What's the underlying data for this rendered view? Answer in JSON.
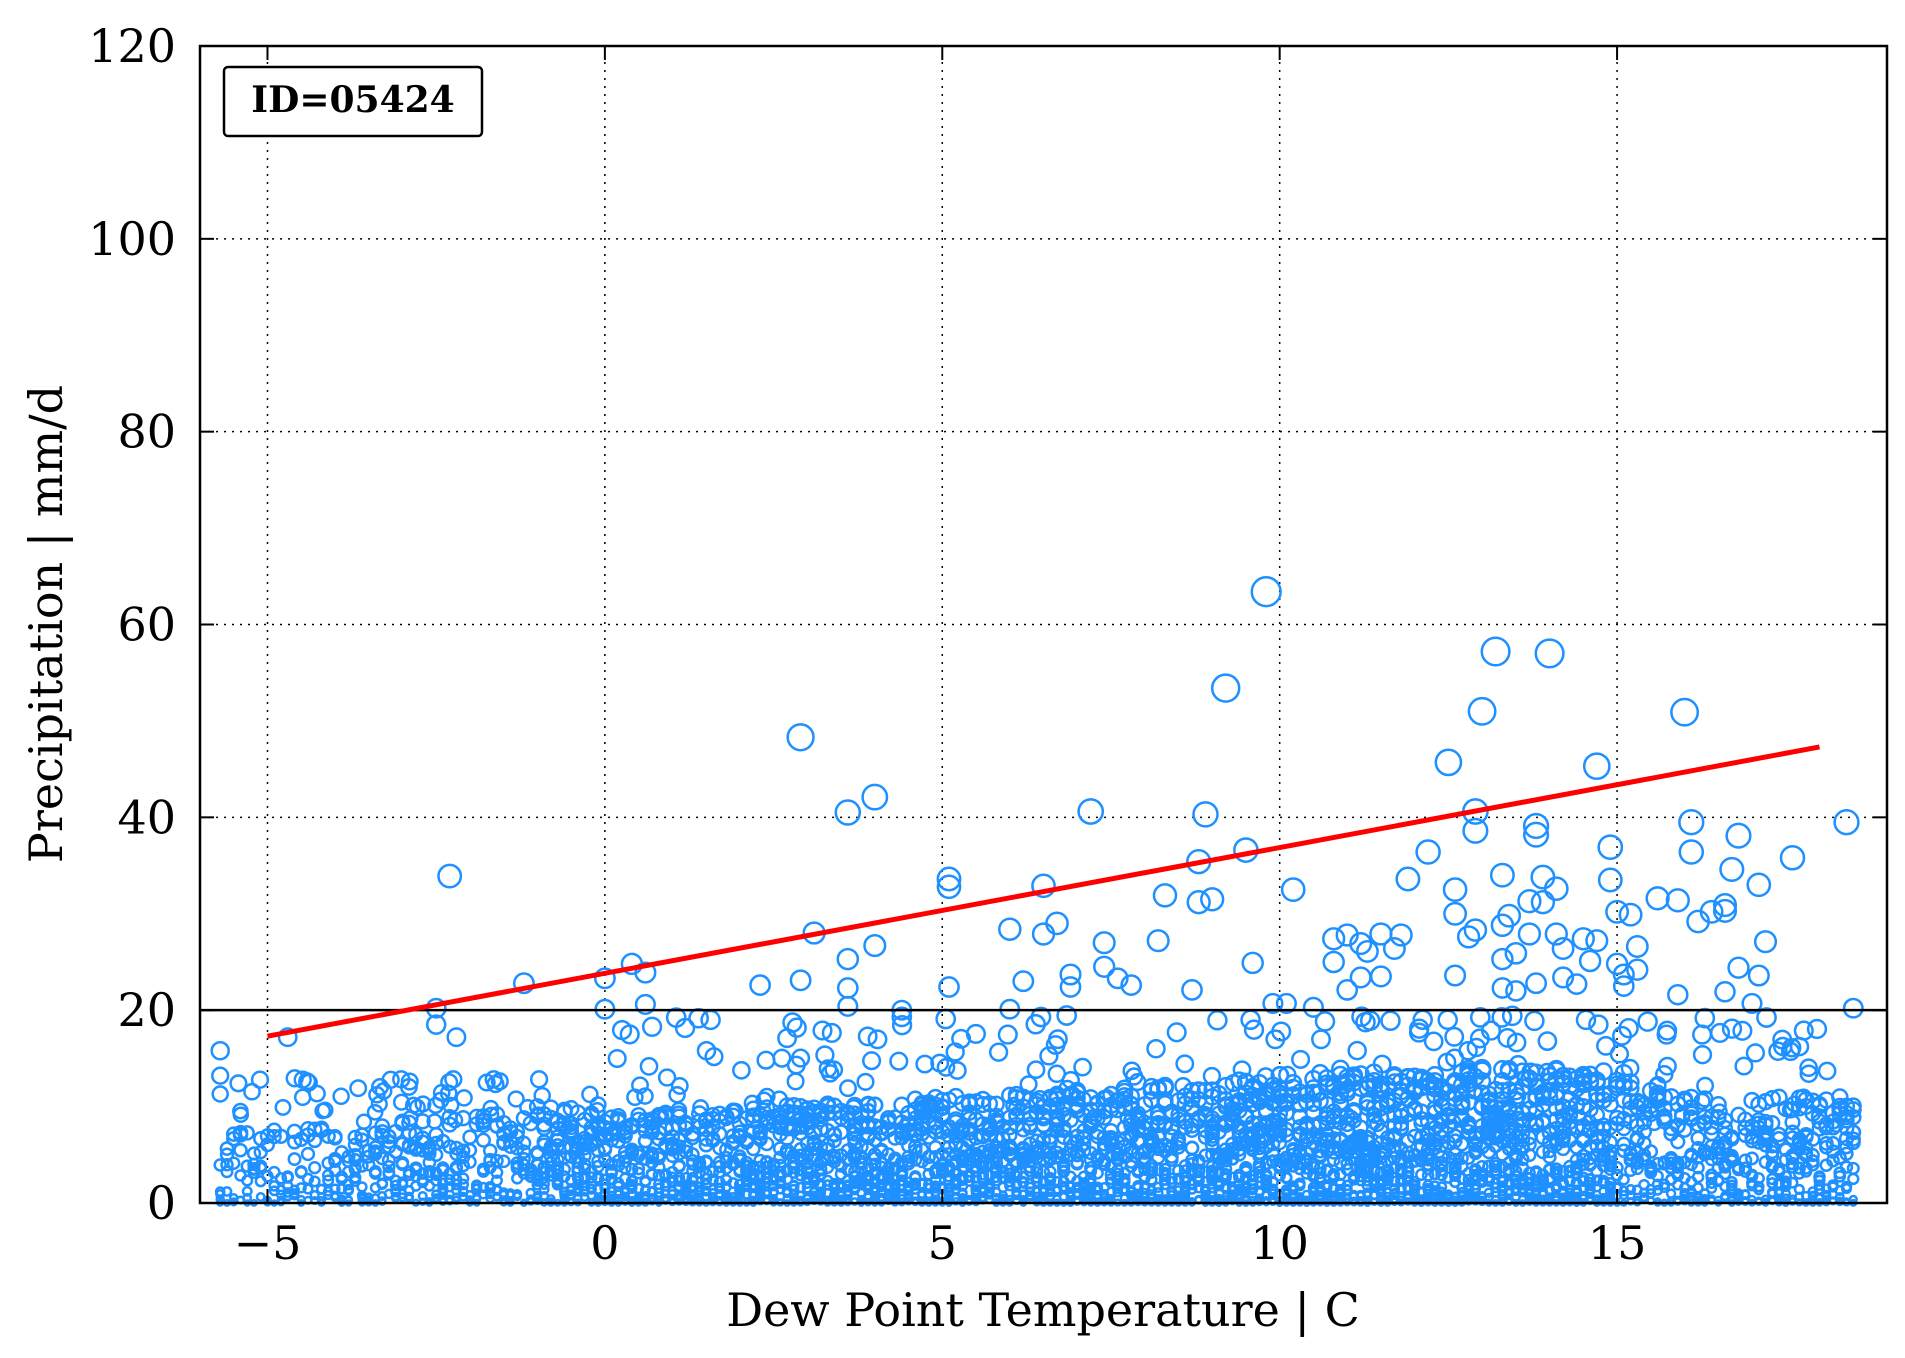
{
  "chart_data": {
    "type": "scatter",
    "title": "",
    "xlabel": "Dew Point Temperature | C",
    "ylabel": "Precipitation | mm/d",
    "xlim": [
      -6,
      19
    ],
    "ylim": [
      0,
      120
    ],
    "grid": true,
    "x_ticks": [
      -5,
      0,
      5,
      10,
      15
    ],
    "x_tick_labels": [
      "−5",
      "0",
      "5",
      "10",
      "15"
    ],
    "y_ticks": [
      0,
      20,
      40,
      60,
      80,
      100,
      120
    ],
    "y_tick_labels": [
      "0",
      "20",
      "40",
      "60",
      "80",
      "100",
      "120"
    ],
    "annotation": "ID=05424",
    "threshold_line": {
      "y": 20,
      "color": "#000000"
    },
    "trend_line": {
      "x": [
        -5,
        18
      ],
      "y": [
        17.3,
        47.3
      ],
      "color": "#ff0000"
    },
    "marker_color": "#1e90ff",
    "series": [
      {
        "outliers": [
          [
            -5.7,
            15.8
          ],
          [
            -5.7,
            13.2
          ],
          [
            -5.7,
            11.3
          ],
          [
            -4.7,
            17.2
          ],
          [
            -2.3,
            33.9
          ],
          [
            -2.5,
            20.2
          ],
          [
            -2.5,
            18.5
          ],
          [
            -2.2,
            17.2
          ],
          [
            -1.2,
            22.8
          ],
          [
            0,
            23.3
          ],
          [
            0,
            20.1
          ],
          [
            0.4,
            24.8
          ],
          [
            0.6,
            23.9
          ],
          [
            0.6,
            20.6
          ],
          [
            2.3,
            22.6
          ],
          [
            2.9,
            48.3
          ],
          [
            2.9,
            23.1
          ],
          [
            3.1,
            28.0
          ],
          [
            3.6,
            40.5
          ],
          [
            3.6,
            22.3
          ],
          [
            3.6,
            25.3
          ],
          [
            3.6,
            20.4
          ],
          [
            4.0,
            42.1
          ],
          [
            4.0,
            26.7
          ],
          [
            4.4,
            20.0
          ],
          [
            4.4,
            19.3
          ],
          [
            5.1,
            33.6
          ],
          [
            5.1,
            32.8
          ],
          [
            5.1,
            22.4
          ],
          [
            6.0,
            28.4
          ],
          [
            6.0,
            20.1
          ],
          [
            6.2,
            23.0
          ],
          [
            6.5,
            32.9
          ],
          [
            6.5,
            27.9
          ],
          [
            6.7,
            29.0
          ],
          [
            6.9,
            23.7
          ],
          [
            6.9,
            22.4
          ],
          [
            7.2,
            40.6
          ],
          [
            7.4,
            27.0
          ],
          [
            7.4,
            24.5
          ],
          [
            7.6,
            23.3
          ],
          [
            7.8,
            22.6
          ],
          [
            8.2,
            27.2
          ],
          [
            8.3,
            31.9
          ],
          [
            8.7,
            22.1
          ],
          [
            8.8,
            35.4
          ],
          [
            8.8,
            31.2
          ],
          [
            8.9,
            40.3
          ],
          [
            9.0,
            31.5
          ],
          [
            9.2,
            53.4
          ],
          [
            9.5,
            36.6
          ],
          [
            9.6,
            24.9
          ],
          [
            9.8,
            63.4
          ],
          [
            9.9,
            20.7
          ],
          [
            10.1,
            20.7
          ],
          [
            10.2,
            32.5
          ],
          [
            10.5,
            20.3
          ],
          [
            10.8,
            27.4
          ],
          [
            10.8,
            25.0
          ],
          [
            11.0,
            27.8
          ],
          [
            11.0,
            22.1
          ],
          [
            11.2,
            26.9
          ],
          [
            11.2,
            23.4
          ],
          [
            11.3,
            26.1
          ],
          [
            11.5,
            27.9
          ],
          [
            11.5,
            23.5
          ],
          [
            11.7,
            26.4
          ],
          [
            11.8,
            27.8
          ],
          [
            11.9,
            33.6
          ],
          [
            12.2,
            36.4
          ],
          [
            12.5,
            45.7
          ],
          [
            12.6,
            32.5
          ],
          [
            12.6,
            30.0
          ],
          [
            12.6,
            23.6
          ],
          [
            12.8,
            27.6
          ],
          [
            12.9,
            40.6
          ],
          [
            12.9,
            38.6
          ],
          [
            12.9,
            28.3
          ],
          [
            13.0,
            51.0
          ],
          [
            13.2,
            57.2
          ],
          [
            13.3,
            34.0
          ],
          [
            13.3,
            28.8
          ],
          [
            13.3,
            25.3
          ],
          [
            13.3,
            22.3
          ],
          [
            13.4,
            29.8
          ],
          [
            13.5,
            25.9
          ],
          [
            13.5,
            22.0
          ],
          [
            13.7,
            31.3
          ],
          [
            13.7,
            27.9
          ],
          [
            13.8,
            39.1
          ],
          [
            13.8,
            38.2
          ],
          [
            13.8,
            22.8
          ],
          [
            13.9,
            33.8
          ],
          [
            13.9,
            31.2
          ],
          [
            14.0,
            57.0
          ],
          [
            14.1,
            32.6
          ],
          [
            14.1,
            27.9
          ],
          [
            14.2,
            26.4
          ],
          [
            14.2,
            23.4
          ],
          [
            14.4,
            22.7
          ],
          [
            14.5,
            27.4
          ],
          [
            14.6,
            25.1
          ],
          [
            14.7,
            45.3
          ],
          [
            14.7,
            27.2
          ],
          [
            14.9,
            36.9
          ],
          [
            14.9,
            33.5
          ],
          [
            15.0,
            30.2
          ],
          [
            15.0,
            24.8
          ],
          [
            15.1,
            22.5
          ],
          [
            15.1,
            23.7
          ],
          [
            15.2,
            29.9
          ],
          [
            15.3,
            26.6
          ],
          [
            15.3,
            24.2
          ],
          [
            15.6,
            31.6
          ],
          [
            15.9,
            31.4
          ],
          [
            15.9,
            21.6
          ],
          [
            16.0,
            50.9
          ],
          [
            16.1,
            39.5
          ],
          [
            16.1,
            36.4
          ],
          [
            16.2,
            29.2
          ],
          [
            16.4,
            30.2
          ],
          [
            16.6,
            30.3
          ],
          [
            16.6,
            30.9
          ],
          [
            16.6,
            21.9
          ],
          [
            16.7,
            34.6
          ],
          [
            16.8,
            24.4
          ],
          [
            16.8,
            38.1
          ],
          [
            17.0,
            20.7
          ],
          [
            17.1,
            33.0
          ],
          [
            17.1,
            23.6
          ],
          [
            17.2,
            27.1
          ],
          [
            17.6,
            35.8
          ],
          [
            18.4,
            39.5
          ],
          [
            18.5,
            20.2
          ]
        ]
      }
    ]
  }
}
